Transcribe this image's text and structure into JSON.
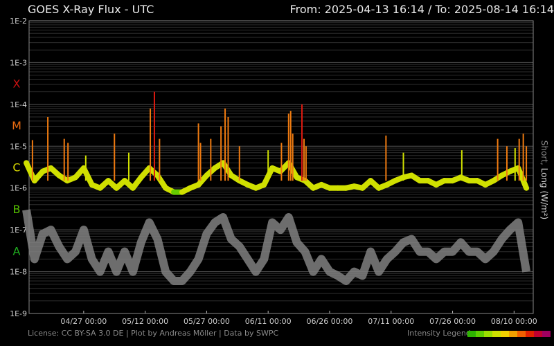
{
  "header": {
    "title": "GOES X-Ray Flux - UTC",
    "from_label": "From:",
    "from_value": "2025-04-13 16:14",
    "separator": "/",
    "to_label": "To:",
    "to_value": "2025-08-14 16:14"
  },
  "footer": {
    "credits": "License: CC BY-SA 3.0 DE | Plot by Andreas Möller | Data by SWPC",
    "legend_label": "Intensity Legend",
    "legend_colors": [
      "#2db300",
      "#5ccc00",
      "#99dd00",
      "#cce000",
      "#f0d000",
      "#f0a000",
      "#f06000",
      "#e02000",
      "#c00030",
      "#a00060"
    ]
  },
  "side_label": {
    "short": "Short",
    "separator": ", ",
    "long": "Long (W/m²)"
  },
  "chart_data": {
    "type": "line",
    "title": "GOES X-Ray Flux - UTC",
    "ylabel": "Short, Long (W/m²)",
    "y_scale": "log",
    "ylim": [
      1e-09,
      0.01
    ],
    "xlim": [
      "2025-04-13 16:14",
      "2025-08-14 16:14"
    ],
    "grid": true,
    "y_ticks": [
      "1E-9",
      "1E-8",
      "1E-7",
      "1E-6",
      "1E-5",
      "1E-4",
      "1E-3",
      "1E-2"
    ],
    "x_ticks": [
      "04/27 00:00",
      "05/12 00:00",
      "05/27 00:00",
      "06/11 00:00",
      "06/26 00:00",
      "07/11 00:00",
      "07/26 00:00",
      "08/10 00:00"
    ],
    "x_tick_dates": [
      "2025-04-27",
      "2025-05-12",
      "2025-05-27",
      "2025-06-11",
      "2025-06-26",
      "2025-07-11",
      "2025-07-26",
      "2025-08-10"
    ],
    "flare_classes": [
      {
        "label": "X",
        "flux": 0.0001,
        "color": "#cc1111"
      },
      {
        "label": "M",
        "flux": 1e-05,
        "color": "#e86a10"
      },
      {
        "label": "C",
        "flux": 1e-06,
        "color": "#d7d700"
      },
      {
        "label": "B",
        "flux": 1e-07,
        "color": "#55c000"
      },
      {
        "label": "A",
        "flux": 1e-08,
        "color": "#20b020"
      }
    ],
    "colors": {
      "background": "#000000",
      "grid": "#3a3a3a",
      "short": "#808080"
    },
    "series": [
      {
        "name": "Long",
        "x": [
          "2025-04-13",
          "2025-04-15",
          "2025-04-17",
          "2025-04-19",
          "2025-04-21",
          "2025-04-23",
          "2025-04-25",
          "2025-04-27",
          "2025-04-29",
          "2025-05-01",
          "2025-05-03",
          "2025-05-05",
          "2025-05-07",
          "2025-05-09",
          "2025-05-11",
          "2025-05-13",
          "2025-05-15",
          "2025-05-17",
          "2025-05-19",
          "2025-05-21",
          "2025-05-23",
          "2025-05-25",
          "2025-05-27",
          "2025-05-29",
          "2025-05-31",
          "2025-06-02",
          "2025-06-04",
          "2025-06-06",
          "2025-06-08",
          "2025-06-10",
          "2025-06-12",
          "2025-06-14",
          "2025-06-16",
          "2025-06-18",
          "2025-06-20",
          "2025-06-22",
          "2025-06-24",
          "2025-06-26",
          "2025-06-28",
          "2025-06-30",
          "2025-07-02",
          "2025-07-04",
          "2025-07-06",
          "2025-07-08",
          "2025-07-10",
          "2025-07-12",
          "2025-07-14",
          "2025-07-16",
          "2025-07-18",
          "2025-07-20",
          "2025-07-22",
          "2025-07-24",
          "2025-07-26",
          "2025-07-28",
          "2025-07-30",
          "2025-08-01",
          "2025-08-03",
          "2025-08-05",
          "2025-08-07",
          "2025-08-09",
          "2025-08-11",
          "2025-08-13"
        ],
        "y": [
          4e-06,
          1.5e-06,
          2.5e-06,
          3e-06,
          2e-06,
          1.5e-06,
          1.8e-06,
          3e-06,
          1.2e-06,
          1e-06,
          1.5e-06,
          1e-06,
          1.5e-06,
          1e-06,
          1.8e-06,
          3e-06,
          2e-06,
          1e-06,
          8e-07,
          8e-07,
          1e-06,
          1.2e-06,
          2e-06,
          3e-06,
          4e-06,
          2e-06,
          1.5e-06,
          1.2e-06,
          1e-06,
          1.2e-06,
          3e-06,
          2.5e-06,
          4e-06,
          1.8e-06,
          1.5e-06,
          1e-06,
          1.2e-06,
          1e-06,
          1e-06,
          1e-06,
          1.1e-06,
          1e-06,
          1.5e-06,
          1e-06,
          1.2e-06,
          1.5e-06,
          1.8e-06,
          2e-06,
          1.5e-06,
          1.5e-06,
          1.2e-06,
          1.5e-06,
          1.5e-06,
          1.8e-06,
          1.5e-06,
          1.5e-06,
          1.2e-06,
          1.5e-06,
          2e-06,
          2.5e-06,
          3e-06,
          1e-06
        ]
      },
      {
        "name": "Short",
        "x": [
          "2025-04-13",
          "2025-04-15",
          "2025-04-17",
          "2025-04-19",
          "2025-04-21",
          "2025-04-23",
          "2025-04-25",
          "2025-04-27",
          "2025-04-29",
          "2025-05-01",
          "2025-05-03",
          "2025-05-05",
          "2025-05-07",
          "2025-05-09",
          "2025-05-11",
          "2025-05-13",
          "2025-05-15",
          "2025-05-17",
          "2025-05-19",
          "2025-05-21",
          "2025-05-23",
          "2025-05-25",
          "2025-05-27",
          "2025-05-29",
          "2025-05-31",
          "2025-06-02",
          "2025-06-04",
          "2025-06-06",
          "2025-06-08",
          "2025-06-10",
          "2025-06-12",
          "2025-06-14",
          "2025-06-16",
          "2025-06-18",
          "2025-06-20",
          "2025-06-22",
          "2025-06-24",
          "2025-06-26",
          "2025-06-28",
          "2025-06-30",
          "2025-07-02",
          "2025-07-04",
          "2025-07-06",
          "2025-07-08",
          "2025-07-10",
          "2025-07-12",
          "2025-07-14",
          "2025-07-16",
          "2025-07-18",
          "2025-07-20",
          "2025-07-22",
          "2025-07-24",
          "2025-07-26",
          "2025-07-28",
          "2025-07-30",
          "2025-08-01",
          "2025-08-03",
          "2025-08-05",
          "2025-08-07",
          "2025-08-09",
          "2025-08-11",
          "2025-08-13"
        ],
        "y": [
          3e-07,
          2e-08,
          8e-08,
          1e-07,
          4e-08,
          2e-08,
          3e-08,
          1e-07,
          2e-08,
          1e-08,
          3e-08,
          1e-08,
          3e-08,
          1e-08,
          5e-08,
          1.5e-07,
          6e-08,
          1e-08,
          6e-09,
          6e-09,
          1e-08,
          2e-08,
          8e-08,
          1.5e-07,
          2e-07,
          6e-08,
          4e-08,
          2e-08,
          1e-08,
          2e-08,
          1.5e-07,
          1e-07,
          2e-07,
          5e-08,
          3e-08,
          1e-08,
          2e-08,
          1e-08,
          8e-09,
          6e-09,
          1e-08,
          8e-09,
          3e-08,
          1e-08,
          2e-08,
          3e-08,
          5e-08,
          6e-08,
          3e-08,
          3e-08,
          2e-08,
          3e-08,
          3e-08,
          5e-08,
          3e-08,
          3e-08,
          2e-08,
          3e-08,
          6e-08,
          1e-07,
          1.5e-07,
          1e-08
        ]
      }
    ],
    "flare_peaks": [
      {
        "time": "2025-04-14 12:00",
        "flux": 1.4e-05
      },
      {
        "time": "2025-04-18 06:00",
        "flux": 5e-05
      },
      {
        "time": "2025-04-22 06:00",
        "flux": 1.5e-05
      },
      {
        "time": "2025-04-23 04:00",
        "flux": 1.2e-05
      },
      {
        "time": "2025-04-27 12:00",
        "flux": 6e-06
      },
      {
        "time": "2025-05-04 12:00",
        "flux": 2e-05
      },
      {
        "time": "2025-05-08 00:00",
        "flux": 7e-06
      },
      {
        "time": "2025-05-13 06:00",
        "flux": 8e-05
      },
      {
        "time": "2025-05-14 06:00",
        "flux": 0.0002
      },
      {
        "time": "2025-05-15 12:00",
        "flux": 1.5e-05
      },
      {
        "time": "2025-05-25 00:00",
        "flux": 3.5e-05
      },
      {
        "time": "2025-05-25 12:00",
        "flux": 1.2e-05
      },
      {
        "time": "2025-05-28 00:00",
        "flux": 1.5e-05
      },
      {
        "time": "2025-05-30 12:00",
        "flux": 3e-05
      },
      {
        "time": "2025-05-31 12:00",
        "flux": 8e-05
      },
      {
        "time": "2025-06-01 06:00",
        "flux": 5e-05
      },
      {
        "time": "2025-06-04 00:00",
        "flux": 1e-05
      },
      {
        "time": "2025-06-11 00:00",
        "flux": 8e-06
      },
      {
        "time": "2025-06-14 06:00",
        "flux": 1.2e-05
      },
      {
        "time": "2025-06-16 00:00",
        "flux": 6e-05
      },
      {
        "time": "2025-06-16 12:00",
        "flux": 7e-05
      },
      {
        "time": "2025-06-17 00:00",
        "flux": 2e-05
      },
      {
        "time": "2025-06-19 06:00",
        "flux": 0.0001
      },
      {
        "time": "2025-06-19 18:00",
        "flux": 1.5e-05
      },
      {
        "time": "2025-06-20 06:00",
        "flux": 1e-05
      },
      {
        "time": "2025-07-09 18:00",
        "flux": 1.8e-05
      },
      {
        "time": "2025-07-14 00:00",
        "flux": 7e-06
      },
      {
        "time": "2025-07-28 06:00",
        "flux": 8e-06
      },
      {
        "time": "2025-08-06 00:00",
        "flux": 1.5e-05
      },
      {
        "time": "2025-08-08 06:00",
        "flux": 1e-05
      },
      {
        "time": "2025-08-10 06:00",
        "flux": 9e-06
      },
      {
        "time": "2025-08-11 06:00",
        "flux": 1.5e-05
      },
      {
        "time": "2025-08-12 06:00",
        "flux": 2e-05
      },
      {
        "time": "2025-08-13 00:00",
        "flux": 1e-05
      }
    ]
  }
}
